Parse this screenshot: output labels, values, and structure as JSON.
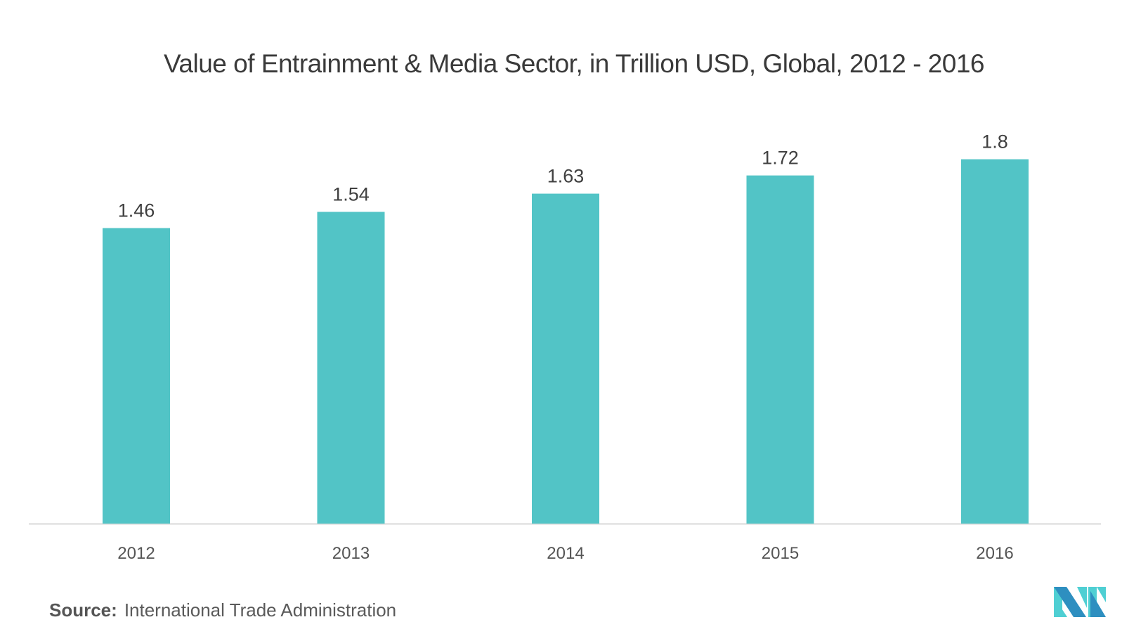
{
  "chart_data": {
    "type": "bar",
    "title": "Value of Entrainment & Media Sector, in Trillion USD, Global, 2012 - 2016",
    "categories": [
      "2012",
      "2013",
      "2014",
      "2015",
      "2016"
    ],
    "values": [
      1.46,
      1.54,
      1.63,
      1.72,
      1.8
    ],
    "data_labels": [
      "1.46",
      "1.54",
      "1.63",
      "1.72",
      "1.8"
    ],
    "xlabel": "",
    "ylabel": "",
    "ylim": [
      0,
      2.1
    ],
    "grid": false,
    "legend": "none",
    "bar_color": "#52c4c6"
  },
  "source": {
    "label": "Source:",
    "text": "International Trade Administration"
  },
  "logo": {
    "icon": "mordor-intelligence-logo",
    "colors": [
      "#2e8fc0",
      "#4fcfd3"
    ]
  }
}
